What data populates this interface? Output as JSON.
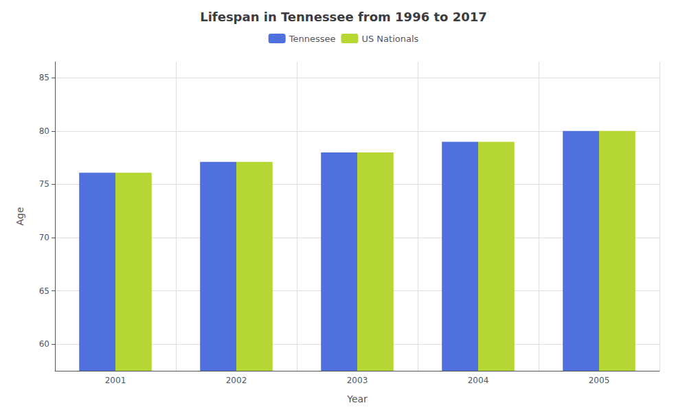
{
  "chart_data": {
    "type": "bar",
    "title": "Lifespan in Tennessee from 1996 to 2017",
    "xlabel": "Year",
    "ylabel": "Age",
    "categories": [
      "2001",
      "2002",
      "2003",
      "2004",
      "2005"
    ],
    "series": [
      {
        "name": "Tennessee",
        "values": [
          76.1,
          77.1,
          78.0,
          79.0,
          80.0
        ]
      },
      {
        "name": "US Nationals",
        "values": [
          76.1,
          77.1,
          78.0,
          79.0,
          80.0
        ]
      }
    ],
    "ylim": [
      57.5,
      86.5
    ],
    "yticks": [
      60,
      65,
      70,
      75,
      80,
      85
    ],
    "grid": true,
    "legend": "top"
  }
}
